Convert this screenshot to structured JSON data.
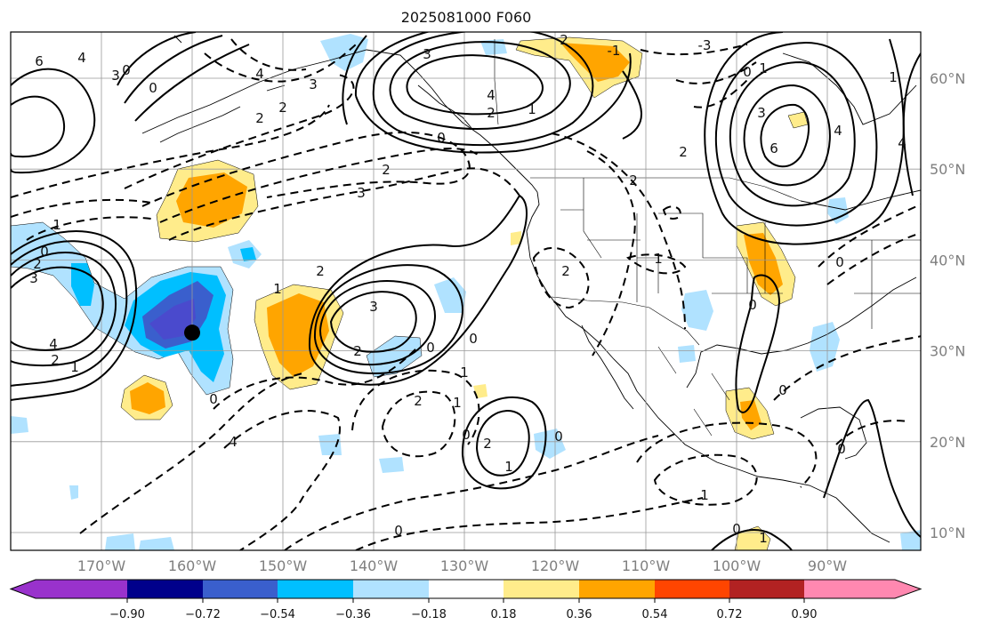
{
  "title": "2025081000 F060",
  "map": {
    "region": "North Pacific / North America",
    "grid": true,
    "lon_labels": [
      "170°W",
      "160°W",
      "150°W",
      "140°W",
      "130°W",
      "120°W",
      "110°W",
      "100°W",
      "90°W"
    ],
    "lat_labels": [
      "60°N",
      "50°N",
      "40°N",
      "30°N",
      "20°N",
      "10°N"
    ],
    "marker": {
      "type": "black-dot",
      "lon": -160,
      "lat": 32
    },
    "contour_labels": [
      "0",
      "1",
      "2",
      "3",
      "4",
      "-1",
      "-2",
      "-3"
    ]
  },
  "colorbar": {
    "ticks": [
      "−0.90",
      "−0.72",
      "−0.54",
      "−0.36",
      "−0.18",
      "0.18",
      "0.36",
      "0.54",
      "0.72",
      "0.90"
    ],
    "colors": [
      "#9932cc",
      "#00008b",
      "#3a5fcd",
      "#00bfff",
      "#b0e2ff",
      "#ffffff",
      "#ffec8b",
      "#ffa500",
      "#ff4500",
      "#b22222",
      "#ff88b0"
    ],
    "extend": "both"
  }
}
